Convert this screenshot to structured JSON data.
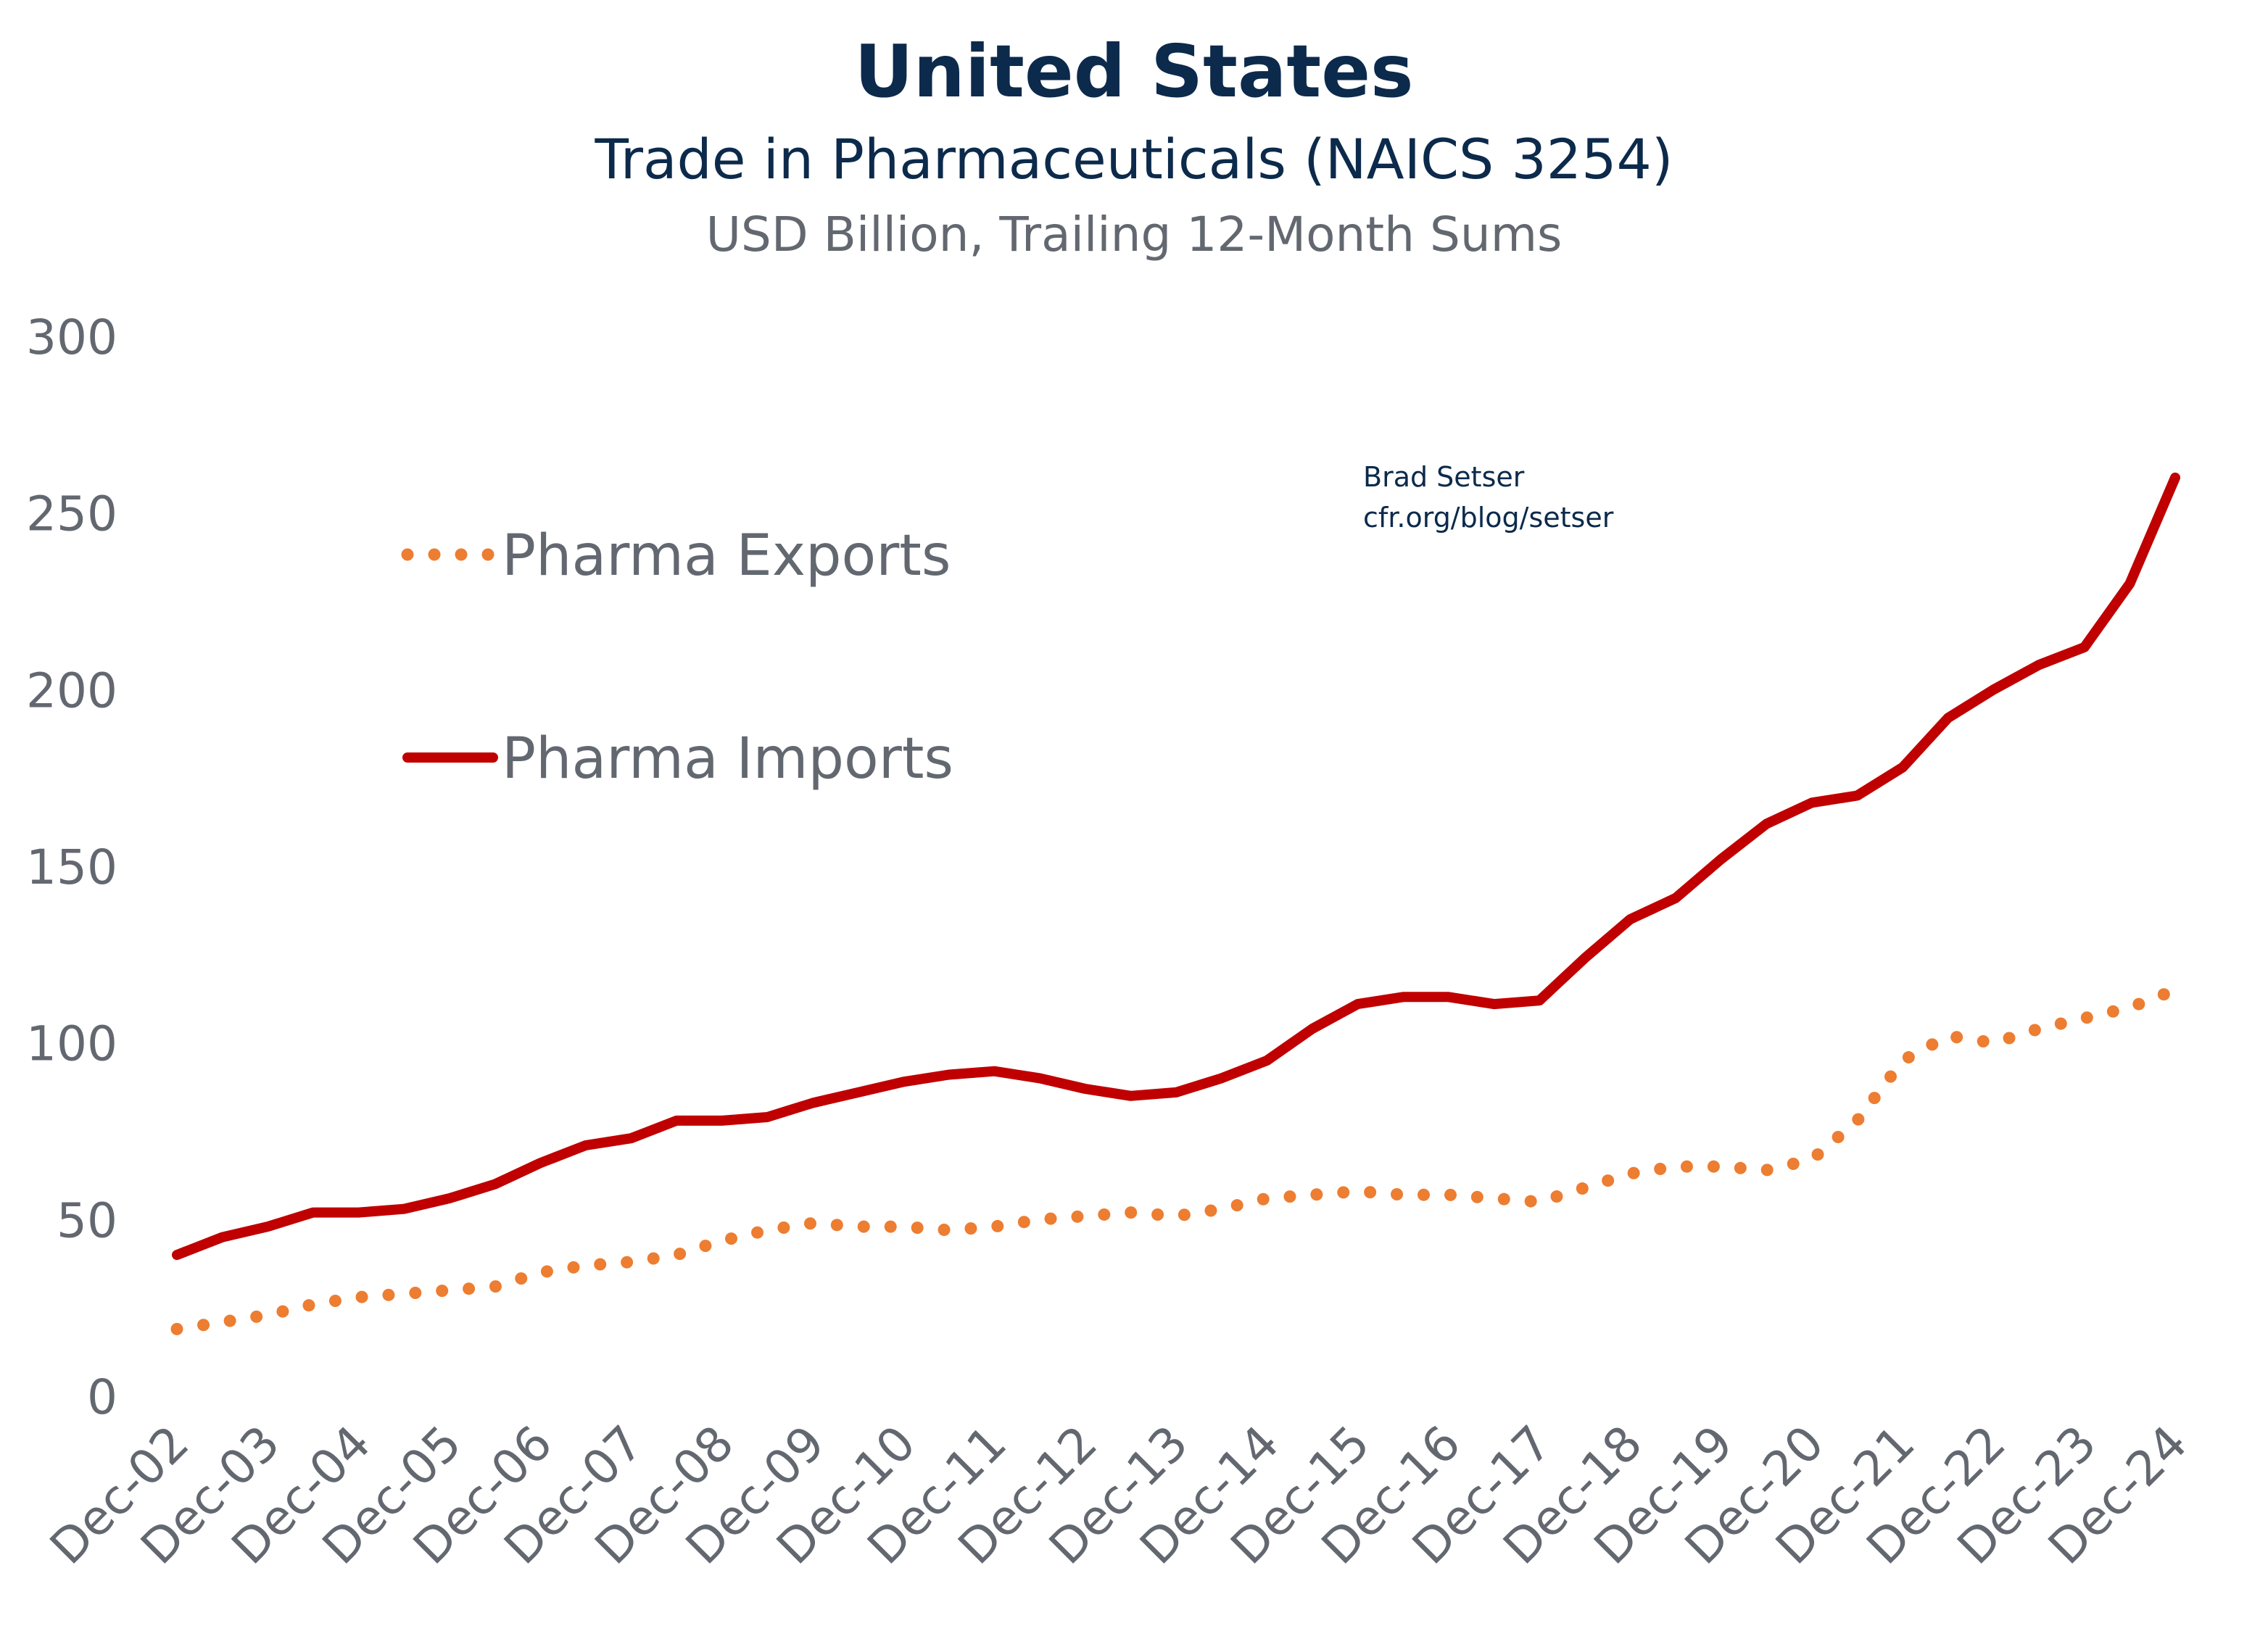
{
  "chart_data": {
    "type": "line",
    "title": "United States",
    "subtitle": "Trade in Pharmaceuticals (NAICS 3254)",
    "units": "USD Billion, Trailing 12-Month Sums",
    "annotation": [
      "Brad Setser",
      "cfr.org/blog/setser"
    ],
    "ylim": [
      0,
      300
    ],
    "yticks": [
      0,
      50,
      100,
      150,
      200,
      250,
      300
    ],
    "xticks": [
      "Dec-02",
      "Dec-03",
      "Dec-04",
      "Dec-05",
      "Dec-06",
      "Dec-07",
      "Dec-08",
      "Dec-09",
      "Dec-10",
      "Dec-11",
      "Dec-12",
      "Dec-13",
      "Dec-14",
      "Dec-15",
      "Dec-16",
      "Dec-17",
      "Dec-18",
      "Dec-19",
      "Dec-20",
      "Dec-21",
      "Dec-22",
      "Dec-23",
      "Dec-24"
    ],
    "grid": false,
    "legend_position": "top-left",
    "x": [
      "Dec-02",
      "Jun-03",
      "Dec-03",
      "Jun-04",
      "Dec-04",
      "Jun-05",
      "Dec-05",
      "Jun-06",
      "Dec-06",
      "Jun-07",
      "Dec-07",
      "Jun-08",
      "Dec-08",
      "Jun-09",
      "Dec-09",
      "Jun-10",
      "Dec-10",
      "Jun-11",
      "Dec-11",
      "Jun-12",
      "Dec-12",
      "Jun-13",
      "Dec-13",
      "Jun-14",
      "Dec-14",
      "Jun-15",
      "Dec-15",
      "Jun-16",
      "Dec-16",
      "Jun-17",
      "Dec-17",
      "Jun-18",
      "Dec-18",
      "Jun-19",
      "Dec-19",
      "Jun-20",
      "Dec-20",
      "Jun-21",
      "Dec-21",
      "Jun-22",
      "Dec-22",
      "Jun-23",
      "Dec-23",
      "Jun-24",
      "Dec-24"
    ],
    "series": [
      {
        "name": "Pharma Exports",
        "color": "#ed7d31",
        "style": "dotted",
        "values": [
          19,
          21,
          23,
          26,
          28,
          29,
          30,
          31,
          35,
          37,
          38,
          40,
          44,
          47,
          49,
          48,
          48,
          47,
          48,
          50,
          51,
          52,
          51,
          53,
          56,
          57,
          58,
          57,
          57,
          56,
          55,
          59,
          63,
          65,
          65,
          64,
          67,
          78,
          95,
          102,
          100,
          104,
          107,
          110,
          115
        ]
      },
      {
        "name": "Pharma Imports",
        "color": "#c00000",
        "style": "solid",
        "values": [
          40,
          45,
          48,
          52,
          52,
          53,
          56,
          60,
          66,
          71,
          73,
          78,
          78,
          79,
          83,
          86,
          89,
          91,
          92,
          90,
          87,
          85,
          86,
          90,
          95,
          104,
          111,
          113,
          113,
          111,
          112,
          124,
          135,
          141,
          152,
          162,
          168,
          170,
          178,
          192,
          200,
          207,
          212,
          230,
          260
        ]
      }
    ]
  }
}
